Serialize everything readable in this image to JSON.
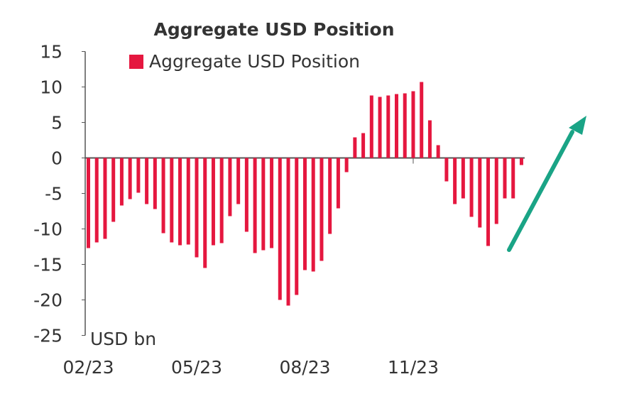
{
  "chart_data": {
    "type": "bar",
    "title": "Aggregate USD Position",
    "unit_label": "USD bn",
    "ylim": [
      -25,
      15
    ],
    "yticks": [
      15,
      10,
      5,
      0,
      -5,
      -10,
      -15,
      -20,
      -25
    ],
    "xticks": [
      {
        "label": "02/23",
        "index": 0
      },
      {
        "label": "05/23",
        "index": 13
      },
      {
        "label": "08/23",
        "index": 26
      },
      {
        "label": "11/23",
        "index": 39
      }
    ],
    "series": [
      {
        "name": "Aggregate USD Position",
        "color": "#e5173f",
        "values": [
          -12.7,
          -11.9,
          -11.4,
          -9.0,
          -6.7,
          -5.8,
          -4.9,
          -6.5,
          -7.2,
          -10.6,
          -11.9,
          -12.3,
          -12.2,
          -14.0,
          -15.5,
          -12.3,
          -12.0,
          -8.2,
          -6.5,
          -10.4,
          -13.4,
          -13.0,
          -12.7,
          -20.0,
          -20.8,
          -19.3,
          -15.8,
          -16.0,
          -14.5,
          -10.7,
          -7.1,
          -2.0,
          2.9,
          3.5,
          8.8,
          8.6,
          8.8,
          9.0,
          9.1,
          9.4,
          10.7,
          5.3,
          1.8,
          -3.3,
          -6.5,
          -5.7,
          -8.3,
          -9.8,
          -12.4,
          -9.3,
          -5.7,
          -5.7,
          -1.0
        ]
      }
    ],
    "grid": false,
    "legend_position": "top",
    "annotation": {
      "type": "arrow",
      "color": "#1aa486",
      "direction": "up-right"
    }
  }
}
